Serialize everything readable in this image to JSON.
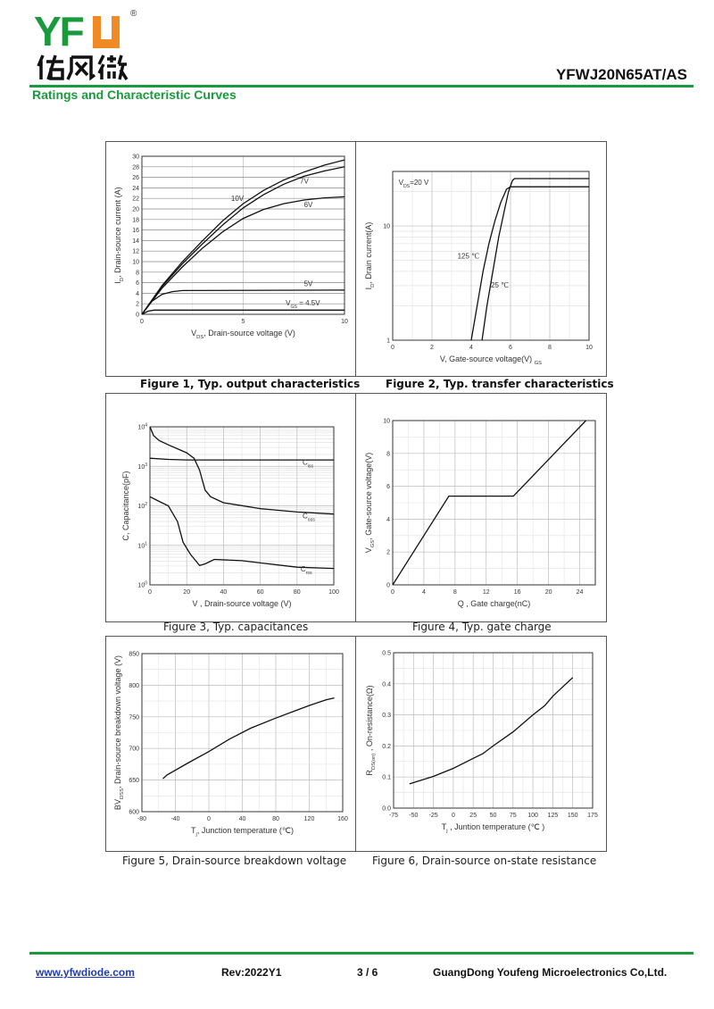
{
  "header": {
    "logo_text": "YFW",
    "logo_cn": "佑风微",
    "logo_mark": "®",
    "doc_title": "YFWJ20N65AT/AS",
    "section": "Ratings and Characteristic Curves",
    "brand_green": "#1a9a3c",
    "brand_orange": "#f08a24"
  },
  "captions": [
    "Figure 1, Typ. output characteristics",
    "Figure 2, Typ. transfer characteristics",
    "Figure 3, Typ. capacitances",
    "Figure 4, Typ. gate charge",
    "Figure 5, Drain-source breakdown voltage",
    "Figure 6, Drain-source on-state resistance"
  ],
  "footer": {
    "url": "www.yfwdiode.com",
    "rev": "Rev:2022Y1",
    "page": "3 / 6",
    "company": "GuangDong Youfeng Microelectronics Co,Ltd."
  },
  "chart_data": [
    {
      "type": "line",
      "xlabel": [
        {
          "t": "V"
        },
        {
          "t": "DS",
          "sub": true
        },
        {
          "t": ", Drain-source voltage (V)"
        }
      ],
      "ylabel": [
        {
          "t": "I"
        },
        {
          "t": "D",
          "sub": true
        },
        {
          "t": ", Drain-source current (A)"
        }
      ],
      "xlim": [
        0,
        10
      ],
      "ylim": [
        0,
        30
      ],
      "xticks": [
        {
          "v": 0,
          "l": "0"
        },
        {
          "v": 5,
          "l": "5"
        },
        {
          "v": 10,
          "l": "10"
        }
      ],
      "yticks": [
        {
          "v": 0,
          "l": "0"
        },
        {
          "v": 2,
          "l": "2"
        },
        {
          "v": 4,
          "l": "4"
        },
        {
          "v": 6,
          "l": "6"
        },
        {
          "v": 8,
          "l": "8"
        },
        {
          "v": 10,
          "l": "10"
        },
        {
          "v": 12,
          "l": "12"
        },
        {
          "v": 14,
          "l": "14"
        },
        {
          "v": 16,
          "l": "16"
        },
        {
          "v": 18,
          "l": "18"
        },
        {
          "v": 20,
          "l": "20"
        },
        {
          "v": 22,
          "l": "22"
        },
        {
          "v": 24,
          "l": "24"
        },
        {
          "v": 26,
          "l": "26"
        },
        {
          "v": 28,
          "l": "28"
        },
        {
          "v": 30,
          "l": "30"
        }
      ],
      "grid": true,
      "series": [
        {
          "name": "10V",
          "x": [
            0,
            1,
            2,
            3,
            4,
            5,
            6,
            7,
            8,
            9,
            10
          ],
          "y": [
            0,
            5.5,
            10,
            14,
            17.8,
            21,
            23.5,
            25.5,
            27,
            28.3,
            29.3
          ]
        },
        {
          "name": "7V",
          "x": [
            0,
            1,
            2,
            3,
            4,
            5,
            6,
            7,
            8,
            9,
            10
          ],
          "y": [
            0,
            5.3,
            9.6,
            13.4,
            17,
            20.2,
            22.7,
            24.7,
            26.2,
            27.2,
            28
          ]
        },
        {
          "name": "6V",
          "x": [
            0,
            1,
            2,
            3,
            4,
            5,
            6,
            7,
            8,
            9,
            10
          ],
          "y": [
            0,
            5,
            9,
            12.6,
            15.7,
            18.2,
            19.9,
            21,
            21.7,
            22.1,
            22.3
          ]
        },
        {
          "name": "5V",
          "x": [
            0,
            0.5,
            1,
            1.5,
            2,
            10
          ],
          "y": [
            0,
            2.5,
            3.8,
            4.3,
            4.5,
            4.6
          ]
        },
        {
          "name": "VGS = 4.5V",
          "x": [
            0,
            0.3,
            0.6,
            10
          ],
          "y": [
            0,
            0.6,
            0.8,
            0.8
          ]
        }
      ],
      "annotations": [
        {
          "text": [
            {
              "t": "10V"
            }
          ],
          "x": 4.4,
          "y": 21.5
        },
        {
          "text": [
            {
              "t": "7V"
            }
          ],
          "x": 7.8,
          "y": 24.8
        },
        {
          "text": [
            {
              "t": "6V"
            }
          ],
          "x": 8,
          "y": 20.3
        },
        {
          "text": [
            {
              "t": "5V"
            }
          ],
          "x": 8,
          "y": 5.3
        },
        {
          "text": [
            {
              "t": "V"
            },
            {
              "t": "GS",
              "sub": true
            },
            {
              "t": " = 4.5V"
            }
          ],
          "x": 7.1,
          "y": 1.7
        }
      ]
    },
    {
      "type": "line",
      "xlabel": [
        {
          "t": "V, Gate-source voltage(V) "
        },
        {
          "t": "GS",
          "sub": true
        }
      ],
      "ylabel": [
        {
          "t": "I"
        },
        {
          "t": "D",
          "sub": true
        },
        {
          "t": ", Drain current(A)"
        }
      ],
      "xlim": [
        0,
        10
      ],
      "ylim": [
        1,
        30
      ],
      "yscale": "log",
      "xticks": [
        {
          "v": 0,
          "l": "0"
        },
        {
          "v": 2,
          "l": "2"
        },
        {
          "v": 4,
          "l": "4"
        },
        {
          "v": 6,
          "l": "6"
        },
        {
          "v": 8,
          "l": "8"
        },
        {
          "v": 10,
          "l": "10"
        }
      ],
      "yticks": [
        {
          "v": 1,
          "l": "1"
        },
        {
          "v": 10,
          "l": "10"
        }
      ],
      "grid": true,
      "series": [
        {
          "name": "25 ℃",
          "x": [
            4.55,
            4.8,
            5.1,
            5.4,
            5.7,
            5.9,
            6.1,
            6.2,
            10
          ],
          "y": [
            1,
            2,
            4,
            8,
            14,
            20,
            25,
            26,
            26
          ]
        },
        {
          "name": "125 ℃",
          "x": [
            4.0,
            4.3,
            4.6,
            4.9,
            5.2,
            5.5,
            5.8,
            6.0,
            10
          ],
          "y": [
            1,
            2,
            4,
            7,
            11,
            16,
            21,
            22,
            22
          ]
        }
      ],
      "annotations": [
        {
          "text": [
            {
              "t": "V"
            },
            {
              "t": "DS",
              "sub": true
            },
            {
              "t": "=20 V"
            }
          ],
          "x": 0.3,
          "y": 23
        },
        {
          "text": [
            {
              "t": "125 ℃"
            }
          ],
          "x": 3.3,
          "y": 5.2
        },
        {
          "text": [
            {
              "t": "25 ℃"
            }
          ],
          "x": 5.0,
          "y": 2.9
        }
      ]
    },
    {
      "type": "line",
      "xlabel": [
        {
          "t": "V   , Drain-source voltage (V)"
        }
      ],
      "ylabel": [
        {
          "t": "C, Capacitance(pF)"
        }
      ],
      "xlim": [
        0,
        100
      ],
      "ylim": [
        1,
        10000
      ],
      "yscale": "log",
      "xticks": [
        {
          "v": 0,
          "l": "0"
        },
        {
          "v": 20,
          "l": "20"
        },
        {
          "v": 40,
          "l": "40"
        },
        {
          "v": 60,
          "l": "60"
        },
        {
          "v": 80,
          "l": "80"
        },
        {
          "v": 100,
          "l": "100"
        }
      ],
      "yticks": [
        {
          "v": 1,
          "l": "10",
          "sup": "0"
        },
        {
          "v": 10,
          "l": "10",
          "sup": "1"
        },
        {
          "v": 100,
          "l": "10",
          "sup": "2"
        },
        {
          "v": 1000,
          "l": "10",
          "sup": "3"
        },
        {
          "v": 10000,
          "l": "10",
          "sup": "4"
        }
      ],
      "grid": true,
      "series": [
        {
          "name": "Ciss",
          "x": [
            0,
            10,
            20,
            100
          ],
          "y": [
            1600,
            1500,
            1450,
            1450
          ]
        },
        {
          "name": "Coss",
          "x": [
            0,
            2,
            5,
            10,
            20,
            24,
            27,
            30,
            33,
            40,
            60,
            80,
            100
          ],
          "y": [
            10000,
            6000,
            4500,
            3500,
            2200,
            1600,
            800,
            250,
            170,
            120,
            85,
            70,
            62
          ]
        },
        {
          "name": "Crss",
          "x": [
            0,
            5,
            10,
            15,
            18,
            22,
            27,
            30,
            35,
            50,
            60,
            80,
            100
          ],
          "y": [
            170,
            130,
            100,
            40,
            12,
            6,
            3.1,
            3.4,
            4.4,
            4.1,
            3.6,
            2.8,
            2.6
          ]
        }
      ],
      "annotations": [
        {
          "text": [
            {
              "t": "C"
            },
            {
              "t": "iss",
              "sub": true
            }
          ],
          "x": 83,
          "y": 1100
        },
        {
          "text": [
            {
              "t": "C"
            },
            {
              "t": "oss",
              "sub": true
            }
          ],
          "x": 83,
          "y": 48
        },
        {
          "text": [
            {
              "t": "C"
            },
            {
              "t": "rss",
              "sub": true
            }
          ],
          "x": 82,
          "y": 2.2
        }
      ]
    },
    {
      "type": "line",
      "xlabel": [
        {
          "t": "Q , Gate charge(nC)"
        }
      ],
      "ylabel": [
        {
          "t": "V"
        },
        {
          "t": "GS",
          "sub": true
        },
        {
          "t": ", Gate-source voltage(V)"
        }
      ],
      "xlim": [
        0,
        26
      ],
      "ylim": [
        0,
        10
      ],
      "xticks": [
        {
          "v": 0,
          "l": "0"
        },
        {
          "v": 4,
          "l": "4"
        },
        {
          "v": 8,
          "l": "8"
        },
        {
          "v": 12,
          "l": "12"
        },
        {
          "v": 16,
          "l": "16"
        },
        {
          "v": 20,
          "l": "20"
        },
        {
          "v": 24,
          "l": "24"
        }
      ],
      "yticks": [
        {
          "v": 0,
          "l": "0"
        },
        {
          "v": 2,
          "l": "2"
        },
        {
          "v": 4,
          "l": "4"
        },
        {
          "v": 6,
          "l": "6"
        },
        {
          "v": 8,
          "l": "8"
        },
        {
          "v": 10,
          "l": "10"
        }
      ],
      "grid": true,
      "series": [
        {
          "x": [
            0,
            7.2,
            15.5,
            24.8
          ],
          "y": [
            0,
            5.4,
            5.4,
            10
          ]
        }
      ],
      "annotations": []
    },
    {
      "type": "line",
      "xlabel": [
        {
          "t": "T"
        },
        {
          "t": "j",
          "sub": true
        },
        {
          "t": ", Junction temperature (℃)"
        }
      ],
      "ylabel": [
        {
          "t": "BV"
        },
        {
          "t": "DSS",
          "sub": true
        },
        {
          "t": ", Drain-source breakdown voltage (V)"
        }
      ],
      "xlim": [
        -80,
        160
      ],
      "ylim": [
        600,
        850
      ],
      "xticks": [
        {
          "v": -80,
          "l": "-80"
        },
        {
          "v": -40,
          "l": "-40"
        },
        {
          "v": 0,
          "l": "0"
        },
        {
          "v": 40,
          "l": "40"
        },
        {
          "v": 80,
          "l": "80"
        },
        {
          "v": 120,
          "l": "120"
        },
        {
          "v": 160,
          "l": "160"
        }
      ],
      "yticks": [
        {
          "v": 600,
          "l": "600"
        },
        {
          "v": 650,
          "l": "650"
        },
        {
          "v": 700,
          "l": "700"
        },
        {
          "v": 750,
          "l": "750"
        },
        {
          "v": 800,
          "l": "800"
        },
        {
          "v": 850,
          "l": "850"
        }
      ],
      "grid": true,
      "series": [
        {
          "x": [
            -55,
            -50,
            -25,
            0,
            25,
            50,
            80,
            100,
            120,
            140,
            150
          ],
          "y": [
            652,
            658,
            677,
            695,
            715,
            732,
            748,
            758,
            768,
            777,
            780
          ]
        }
      ],
      "annotations": []
    },
    {
      "type": "line",
      "xlabel": [
        {
          "t": "T"
        },
        {
          "t": "j",
          "sub": true
        },
        {
          "t": " , Juntion temperature (℃ )"
        }
      ],
      "ylabel": [
        {
          "t": "R"
        },
        {
          "t": "DS(on)",
          "sub": true
        },
        {
          "t": " , On-resistance(Ω)"
        }
      ],
      "xlim": [
        -75,
        175
      ],
      "ylim": [
        0,
        0.5
      ],
      "xticks": [
        {
          "v": -75,
          "l": "-75"
        },
        {
          "v": -50,
          "l": "-50"
        },
        {
          "v": -25,
          "l": "-25"
        },
        {
          "v": 0,
          "l": "0"
        },
        {
          "v": 25,
          "l": "25"
        },
        {
          "v": 50,
          "l": "50"
        },
        {
          "v": 75,
          "l": "75"
        },
        {
          "v": 100,
          "l": "100"
        },
        {
          "v": 125,
          "l": "125"
        },
        {
          "v": 150,
          "l": "150"
        },
        {
          "v": 175,
          "l": "175"
        }
      ],
      "yticks": [
        {
          "v": 0,
          "l": "0.0"
        },
        {
          "v": 0.1,
          "l": "0.1"
        },
        {
          "v": 0.2,
          "l": "0.2"
        },
        {
          "v": 0.3,
          "l": "0.3"
        },
        {
          "v": 0.4,
          "l": "0.4"
        },
        {
          "v": 0.5,
          "l": "0.5"
        }
      ],
      "grid": true,
      "series": [
        {
          "x": [
            -55,
            -25,
            0,
            25,
            37,
            50,
            75,
            100,
            115,
            125,
            150
          ],
          "y": [
            0.078,
            0.102,
            0.128,
            0.16,
            0.175,
            0.2,
            0.245,
            0.3,
            0.33,
            0.36,
            0.42
          ]
        }
      ],
      "annotations": []
    }
  ]
}
